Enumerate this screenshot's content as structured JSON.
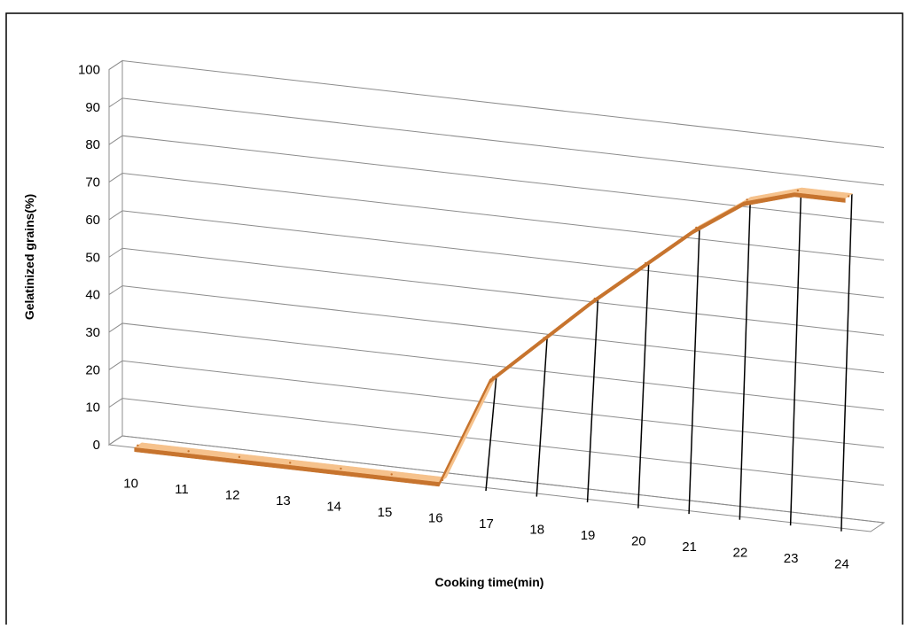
{
  "chart_data": {
    "type": "line",
    "style": "3d-ribbon",
    "title": "",
    "xlabel": "Cooking time(min)",
    "ylabel": "Gelatinized grains(%)",
    "categories": [
      "10",
      "11",
      "12",
      "13",
      "14",
      "15",
      "16",
      "17",
      "18",
      "19",
      "20",
      "21",
      "22",
      "23",
      "24"
    ],
    "series": [
      {
        "values": [
          0,
          0,
          0,
          0,
          0,
          0,
          0,
          29,
          41,
          53,
          64,
          75,
          84,
          88,
          88
        ]
      }
    ],
    "ylim": [
      0,
      100
    ],
    "yticks": [
      "0",
      "10",
      "20",
      "30",
      "40",
      "50",
      "60",
      "70",
      "80",
      "90",
      "100"
    ],
    "grid": true,
    "legend": "none",
    "colors": {
      "ribbon_top": "#f6c28c",
      "ribbon_side": "#c7742e",
      "gridline": "#8c8c8c",
      "drop_line": "#000000"
    }
  }
}
